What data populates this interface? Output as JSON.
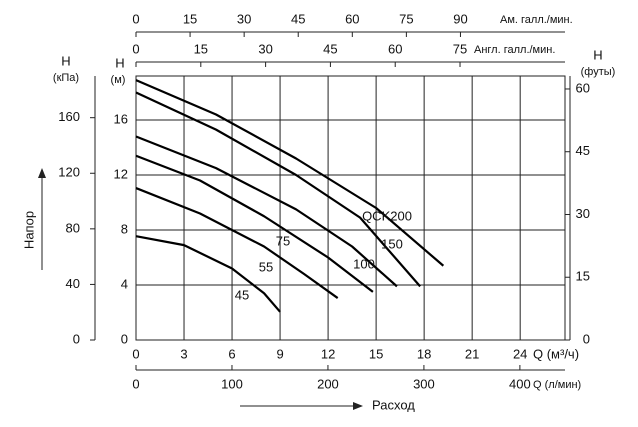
{
  "chart_data": {
    "type": "line",
    "xlabel": "Q (м³/ч)",
    "xlim": [
      0,
      26.8
    ],
    "xticks": [
      0,
      3,
      6,
      9,
      12,
      15,
      18,
      21,
      24
    ],
    "ylabel": [
      "H",
      "(м)"
    ],
    "ylim": [
      0,
      19.2
    ],
    "yticks": [
      0,
      4,
      8,
      12,
      16
    ],
    "grid": true,
    "top_us": {
      "label": "Ам. галл./мин.",
      "lim": [
        0,
        119
      ],
      "ticks": [
        0,
        15,
        30,
        45,
        60,
        75,
        90
      ]
    },
    "top_uk": {
      "label": "Англ. галл./мин.",
      "lim": [
        0,
        99.3
      ],
      "ticks": [
        0,
        15,
        30,
        45,
        60,
        75
      ]
    },
    "bottom_lpm": {
      "label": "Q (л/мин)",
      "lim": [
        0,
        447
      ],
      "ticks": [
        0,
        100,
        200,
        300,
        400
      ]
    },
    "left_kpa": {
      "label": [
        "H",
        "(кПа)"
      ],
      "lim": [
        0,
        190
      ],
      "ticks": [
        0,
        40,
        80,
        120,
        160
      ]
    },
    "right_ft": {
      "label": [
        "H",
        "(футы)"
      ],
      "lim": [
        0,
        63.1
      ],
      "ticks": [
        0,
        15,
        30,
        45,
        60
      ]
    },
    "y_title": "Напор",
    "x_title": "Расход",
    "series": [
      {
        "name": "45",
        "color": "#000000",
        "x": [
          0,
          3,
          6,
          8,
          9
        ],
        "values": [
          7.55,
          6.9,
          5.2,
          3.4,
          2.05
        ]
      },
      {
        "name": "55",
        "color": "#000000",
        "x": [
          0,
          4,
          8,
          10.5,
          12.6
        ],
        "values": [
          11.05,
          9.2,
          6.8,
          4.8,
          3.05
        ]
      },
      {
        "name": "75",
        "color": "#000000",
        "x": [
          0,
          4,
          8,
          12,
          14.8
        ],
        "values": [
          13.4,
          11.6,
          9.0,
          6.0,
          3.5
        ]
      },
      {
        "name": "100",
        "color": "#000000",
        "x": [
          0,
          5,
          10,
          13.5,
          16.3
        ],
        "values": [
          14.8,
          12.5,
          9.5,
          6.8,
          3.9
        ]
      },
      {
        "name": "150",
        "color": "#000000",
        "x": [
          0,
          5,
          10,
          14,
          17.75
        ],
        "values": [
          18.0,
          15.3,
          12.0,
          8.9,
          3.9
        ]
      },
      {
        "name": "QCK200",
        "color": "#000000",
        "x": [
          0,
          5,
          10,
          15,
          19.2
        ],
        "values": [
          18.9,
          16.4,
          13.2,
          9.6,
          5.4
        ]
      }
    ]
  }
}
